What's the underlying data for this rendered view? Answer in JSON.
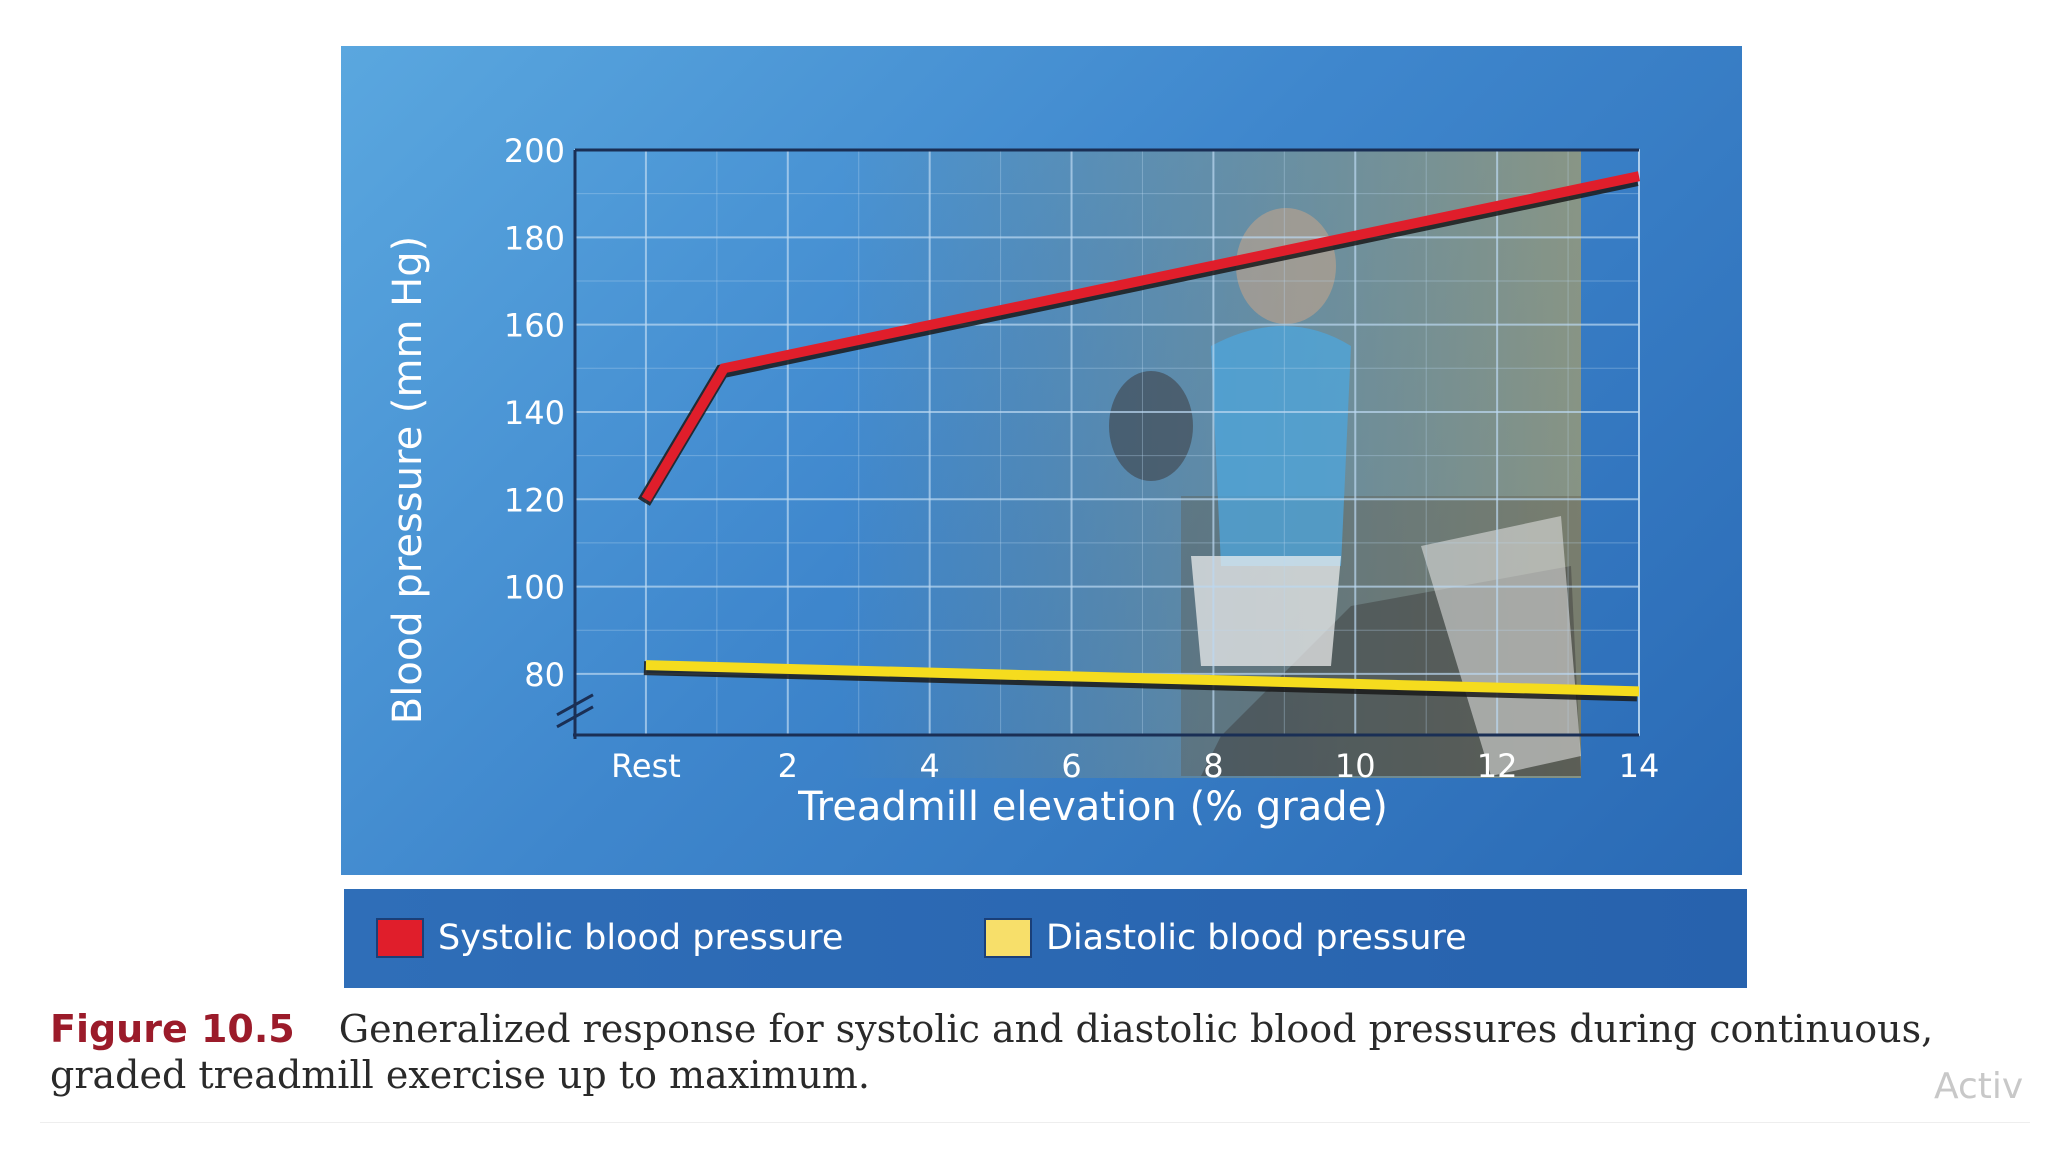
{
  "chart_data": {
    "type": "line",
    "xlabel": "Treadmill elevation (% grade)",
    "ylabel": "Blood pressure (mm Hg)",
    "x_tick_labels": [
      "Rest",
      "2",
      "4",
      "6",
      "8",
      "10",
      "12",
      "14"
    ],
    "x_tick_values": [
      0,
      2,
      4,
      6,
      8,
      10,
      12,
      14
    ],
    "y_ticks": [
      80,
      100,
      120,
      140,
      160,
      180,
      200
    ],
    "xlim": [
      -1,
      14
    ],
    "ylim": [
      66,
      200
    ],
    "axis_break": true,
    "grid": true,
    "series": [
      {
        "name": "Systolic blood pressure",
        "color": "#e01e2b",
        "x": [
          0,
          1.1,
          14
        ],
        "y": [
          120,
          150,
          194
        ]
      },
      {
        "name": "Diastolic blood pressure",
        "color": "#f5dc1e",
        "x": [
          0,
          14
        ],
        "y": [
          82,
          76
        ]
      }
    ]
  },
  "legend": {
    "items": [
      {
        "label": "Systolic blood pressure",
        "color": "#e01e2b"
      },
      {
        "label": "Diastolic blood pressure",
        "color": "#f7df6a"
      }
    ]
  },
  "caption": {
    "label": "Figure 10.5",
    "text": "Generalized response for systolic and diastolic blood pressures during continuous, graded treadmill exercise up to maximum."
  },
  "watermark": "Activ"
}
